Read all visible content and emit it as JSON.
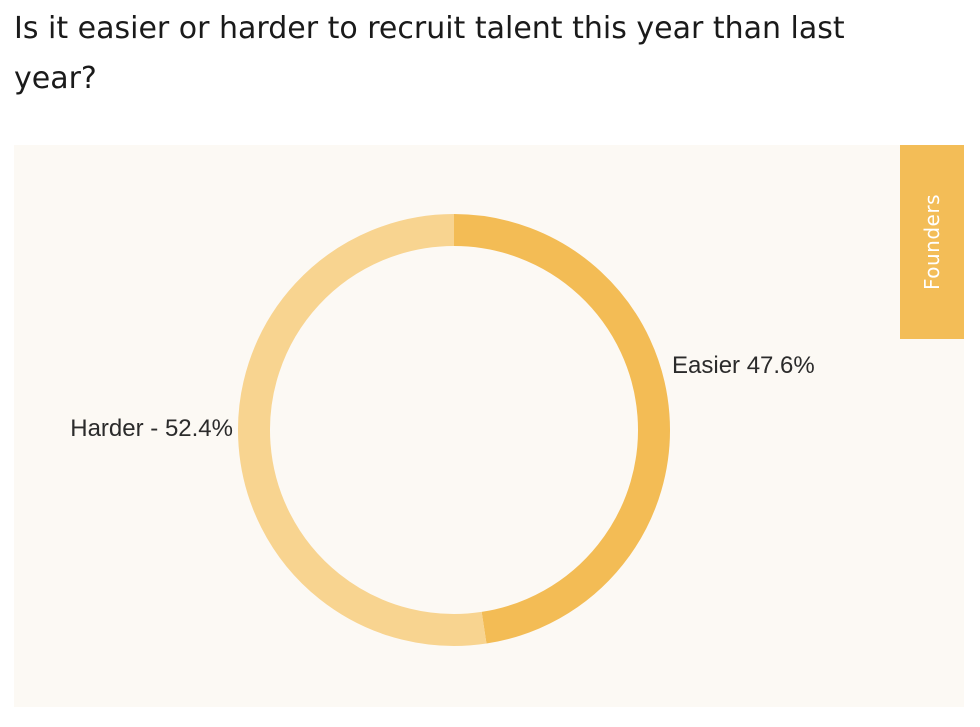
{
  "question": "Is it easier or harder to recruit talent this year than last year?",
  "side_tab": {
    "label": "Founders"
  },
  "colors": {
    "easier": "#f3bc55",
    "harder": "#f8d490",
    "panel_background": "#fcf9f4",
    "tab_background": "#f3bd57"
  },
  "chart_data": {
    "type": "pie",
    "title": "Is it easier or harder to recruit talent this year than last year?",
    "donut": true,
    "legend": "none",
    "slices": [
      {
        "name": "Easier",
        "value": 47.6,
        "label": "Easier 47.6%",
        "color": "#f3bc55"
      },
      {
        "name": "Harder",
        "value": 52.4,
        "label": "Harder - 52.4%",
        "color": "#f8d490"
      }
    ]
  }
}
